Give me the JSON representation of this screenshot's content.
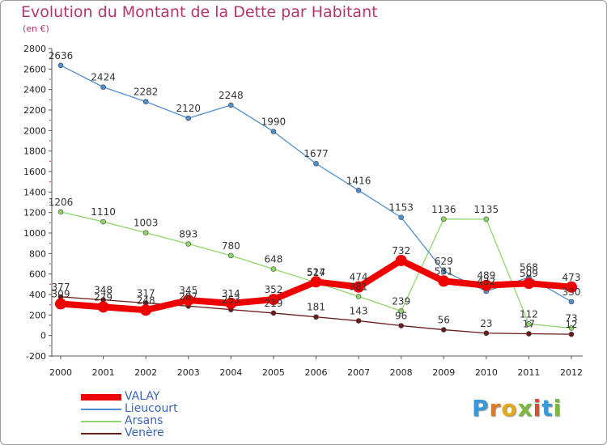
{
  "title": "Evolution du Montant de la Dette par Habitant",
  "unit": "(en €)",
  "logo": {
    "letters": [
      "P",
      "r",
      "o",
      "x",
      "i",
      "t",
      "i"
    ],
    "colors": [
      "#3a9ad9",
      "#e07a1f",
      "#e0a81f",
      "#7ab93c",
      "#d94a3a",
      "#3a9ad9",
      "#7ab93c"
    ]
  },
  "chart_data": {
    "type": "line",
    "x": [
      2000,
      2001,
      2002,
      2003,
      2004,
      2005,
      2006,
      2007,
      2008,
      2009,
      2010,
      2011,
      2012
    ],
    "ylim": [
      -200,
      2800
    ],
    "yticks": [
      -200,
      0,
      200,
      400,
      600,
      800,
      1000,
      1200,
      1400,
      1600,
      1800,
      2000,
      2200,
      2400,
      2600,
      2800
    ],
    "grid": false,
    "legend_position": "bottom-left",
    "series": [
      {
        "name": "VALAY",
        "color": "#ee0000",
        "values": [
          309,
          279,
          248,
          345,
          314,
          352,
          524,
          474,
          732,
          531,
          489,
          509,
          473
        ]
      },
      {
        "name": "Lieucourt",
        "color": "#4f8fd0",
        "values": [
          2636,
          2424,
          2282,
          2120,
          2248,
          1990,
          1677,
          1416,
          1153,
          629,
          432,
          568,
          330
        ]
      },
      {
        "name": "Arsans",
        "color": "#8fd66a",
        "values": [
          1206,
          1110,
          1003,
          893,
          780,
          648,
          517,
          381,
          239,
          1136,
          1135,
          112,
          73
        ]
      },
      {
        "name": "Venère",
        "color": "#6a1a1a",
        "values": [
          377,
          348,
          317,
          287,
          253,
          219,
          181,
          143,
          96,
          56,
          23,
          17,
          12
        ]
      }
    ]
  }
}
